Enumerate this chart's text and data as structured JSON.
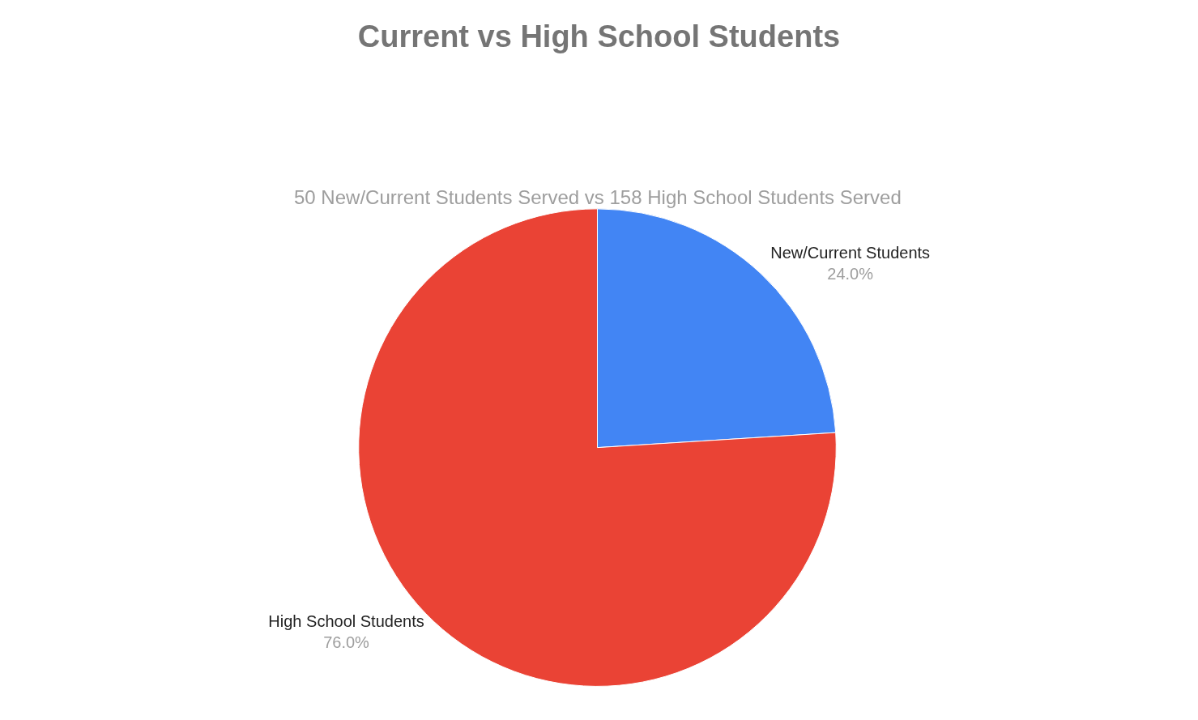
{
  "chart_data": {
    "type": "pie",
    "title": "Current vs High School Students",
    "subtitle": "50 New/Current Students Served vs 158 High School Students Served",
    "categories": [
      "New/Current Students",
      "High School Students"
    ],
    "values": [
      24.0,
      76.0
    ],
    "colors": [
      "#4285f4",
      "#ea4335"
    ],
    "value_labels": [
      "24.0%",
      "76.0%"
    ],
    "legend": false
  }
}
